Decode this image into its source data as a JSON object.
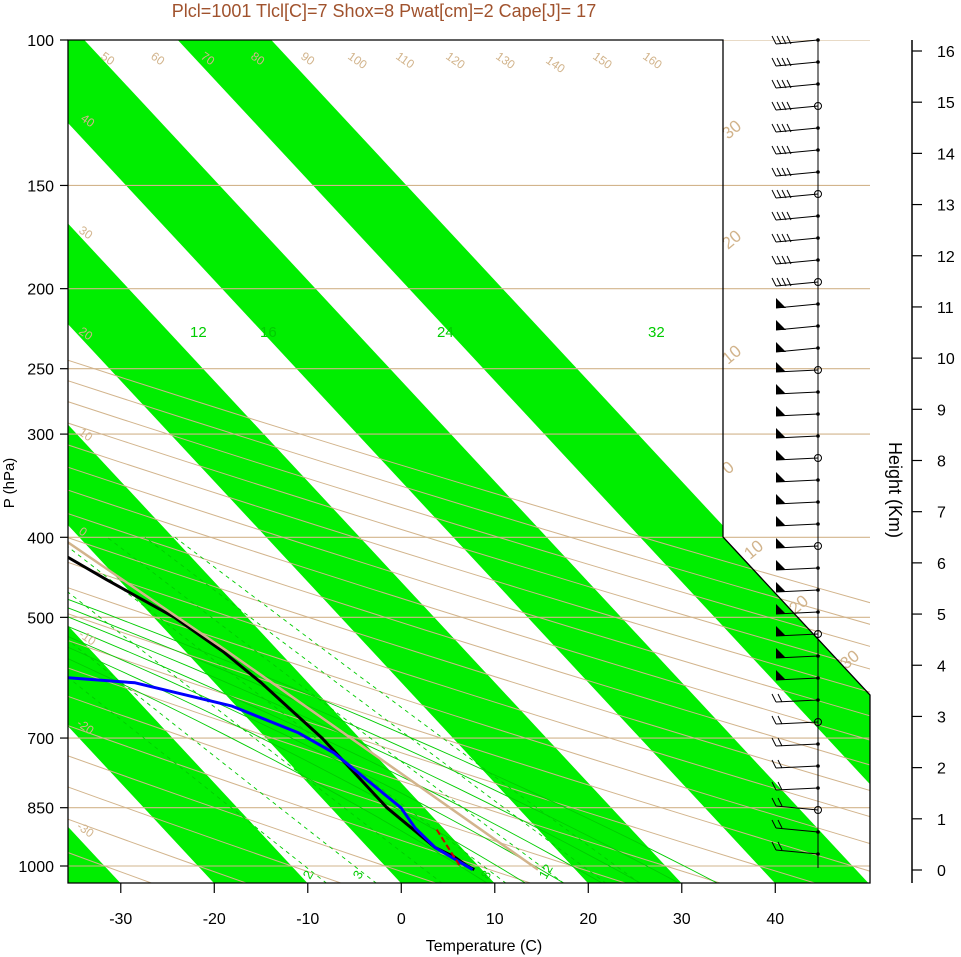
{
  "header": {
    "text": "Plcl=1001 Tlcl[C]=7 Shox=8 Pwat[cm]=2 Cape[J]= 17"
  },
  "colors": {
    "band_green": "#00ee00",
    "tan": "#d2b48c",
    "title": "#a0522d",
    "env_temp": "#000000",
    "dewpoint": "#0000ff",
    "parcel": "#d2b48c",
    "mixing_lines": "#00cc00",
    "lcl_marker": "#cc0000"
  },
  "chart_data": {
    "type": "line",
    "xlabel": "Temperature (C)",
    "ylabel": "P (hPa)",
    "y2label": "Height (Km)",
    "xlim": [
      -33.5,
      52
    ],
    "ylim": [
      1050,
      100
    ],
    "x_ticks": [
      "-30",
      "-20",
      "-10",
      "0",
      "10",
      "20",
      "30",
      "40"
    ],
    "pressure_ticks": [
      "100",
      "150",
      "200",
      "250",
      "300",
      "400",
      "500",
      "700",
      "850",
      "1000"
    ],
    "height_ticks": [
      "0",
      "1",
      "2",
      "3",
      "4",
      "5",
      "6",
      "7",
      "8",
      "9",
      "10",
      "11",
      "12",
      "13",
      "14",
      "15",
      "16"
    ],
    "isotherm_labels": [
      "30",
      "20",
      "10",
      "0",
      "-10",
      "20",
      "30"
    ],
    "dry_adiabat_labels": [
      "-30",
      "-20",
      "-10",
      "0",
      "10",
      "20",
      "30",
      "40",
      "50",
      "60",
      "70",
      "80",
      "90",
      "100",
      "110",
      "120",
      "130",
      "140",
      "150",
      "160"
    ],
    "mixing_ratio_labels_top": [
      "12",
      "16",
      "24",
      "32"
    ],
    "mixing_ratio_labels_bottom": [
      "2",
      "3",
      "8",
      "12"
    ],
    "series": [
      {
        "role": "temperature",
        "values": [
          [
            9.2,
            1010
          ],
          [
            8.8,
            1000
          ],
          [
            8.3,
            975
          ],
          [
            7.2,
            950
          ],
          [
            6.0,
            850
          ],
          [
            6.0,
            800
          ],
          [
            6.0,
            700
          ],
          [
            5.5,
            650
          ],
          [
            5.0,
            600
          ],
          [
            4.0,
            550
          ],
          [
            2.2,
            500
          ],
          [
            -1.3,
            450
          ],
          [
            -4.9,
            400
          ],
          [
            -8.0,
            350
          ],
          [
            -9.5,
            300
          ],
          [
            -9.3,
            280
          ],
          [
            -7.7,
            255
          ],
          [
            -4.5,
            230
          ],
          [
            -1.3,
            205
          ],
          [
            2.8,
            185
          ],
          [
            7.9,
            165
          ],
          [
            11.0,
            152
          ],
          [
            17.1,
            102
          ]
        ]
      },
      {
        "role": "dewpoint",
        "values": [
          [
            9.0,
            1010
          ],
          [
            7.2,
            950
          ],
          [
            7.0,
            900
          ],
          [
            7.5,
            850
          ],
          [
            5.8,
            730
          ],
          [
            4.0,
            690
          ],
          [
            -0.5,
            640
          ],
          [
            -8.5,
            600
          ],
          [
            -33.0,
            570
          ],
          [
            -28.0,
            545
          ],
          [
            -24.5,
            520
          ],
          [
            -19.5,
            490
          ],
          [
            -17.3,
            400
          ],
          [
            -16.5,
            330
          ],
          [
            -16.5,
            300
          ],
          [
            -17.2,
            278
          ],
          [
            -23.8,
            180
          ],
          [
            -6.0,
            105
          ]
        ]
      },
      {
        "role": "parcel",
        "values": [
          [
            16.0,
            1010
          ],
          [
            4.5,
            550
          ],
          [
            -2.0,
            400
          ],
          [
            -7.0,
            230
          ],
          [
            15.0,
            115
          ]
        ]
      }
    ],
    "lcl": {
      "temperature": 8.0,
      "pressure_from": 950,
      "pressure_to": 1001
    }
  }
}
